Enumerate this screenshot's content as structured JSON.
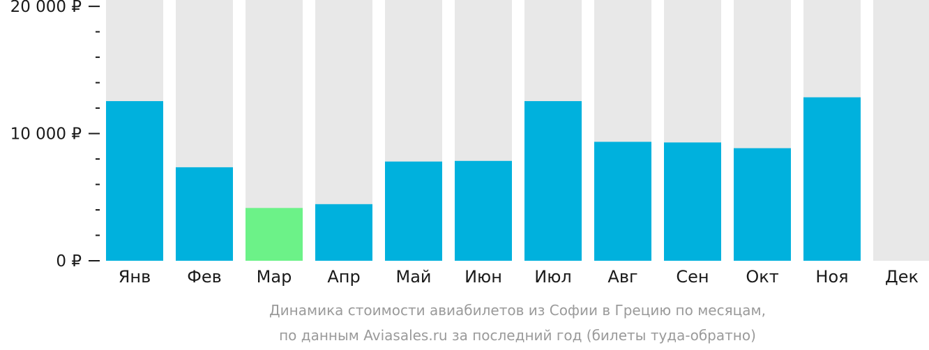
{
  "chart_data": {
    "type": "bar",
    "categories": [
      "Янв",
      "Фев",
      "Мар",
      "Апр",
      "Май",
      "Июн",
      "Июл",
      "Авг",
      "Сен",
      "Окт",
      "Ноя",
      "Дек"
    ],
    "values": [
      12550,
      7350,
      4150,
      4450,
      7800,
      7850,
      12550,
      9350,
      9300,
      8850,
      12850,
      null
    ],
    "ylim": [
      0,
      20500
    ],
    "yticks_major": [
      {
        "value": 0,
        "label": "0 ₽"
      },
      {
        "value": 10000,
        "label": "10 000 ₽"
      },
      {
        "value": 20000,
        "label": "20 000 ₽"
      }
    ],
    "yticks_minor": [
      2000,
      4000,
      6000,
      8000,
      12000,
      14000,
      16000,
      18000
    ],
    "highlight_index": 2,
    "colors": {
      "bar": "#00b1dd",
      "highlight": "#6cf288",
      "background_bar": "#e8e8e8",
      "axis": "#1a1a1a",
      "caption": "#9a9a9a"
    },
    "caption_lines": [
      "Динамика стоимости авиабилетов из Софии в Грецию по месяцам,",
      "по данным Aviasales.ru за последний год (билеты туда-обратно)"
    ]
  }
}
